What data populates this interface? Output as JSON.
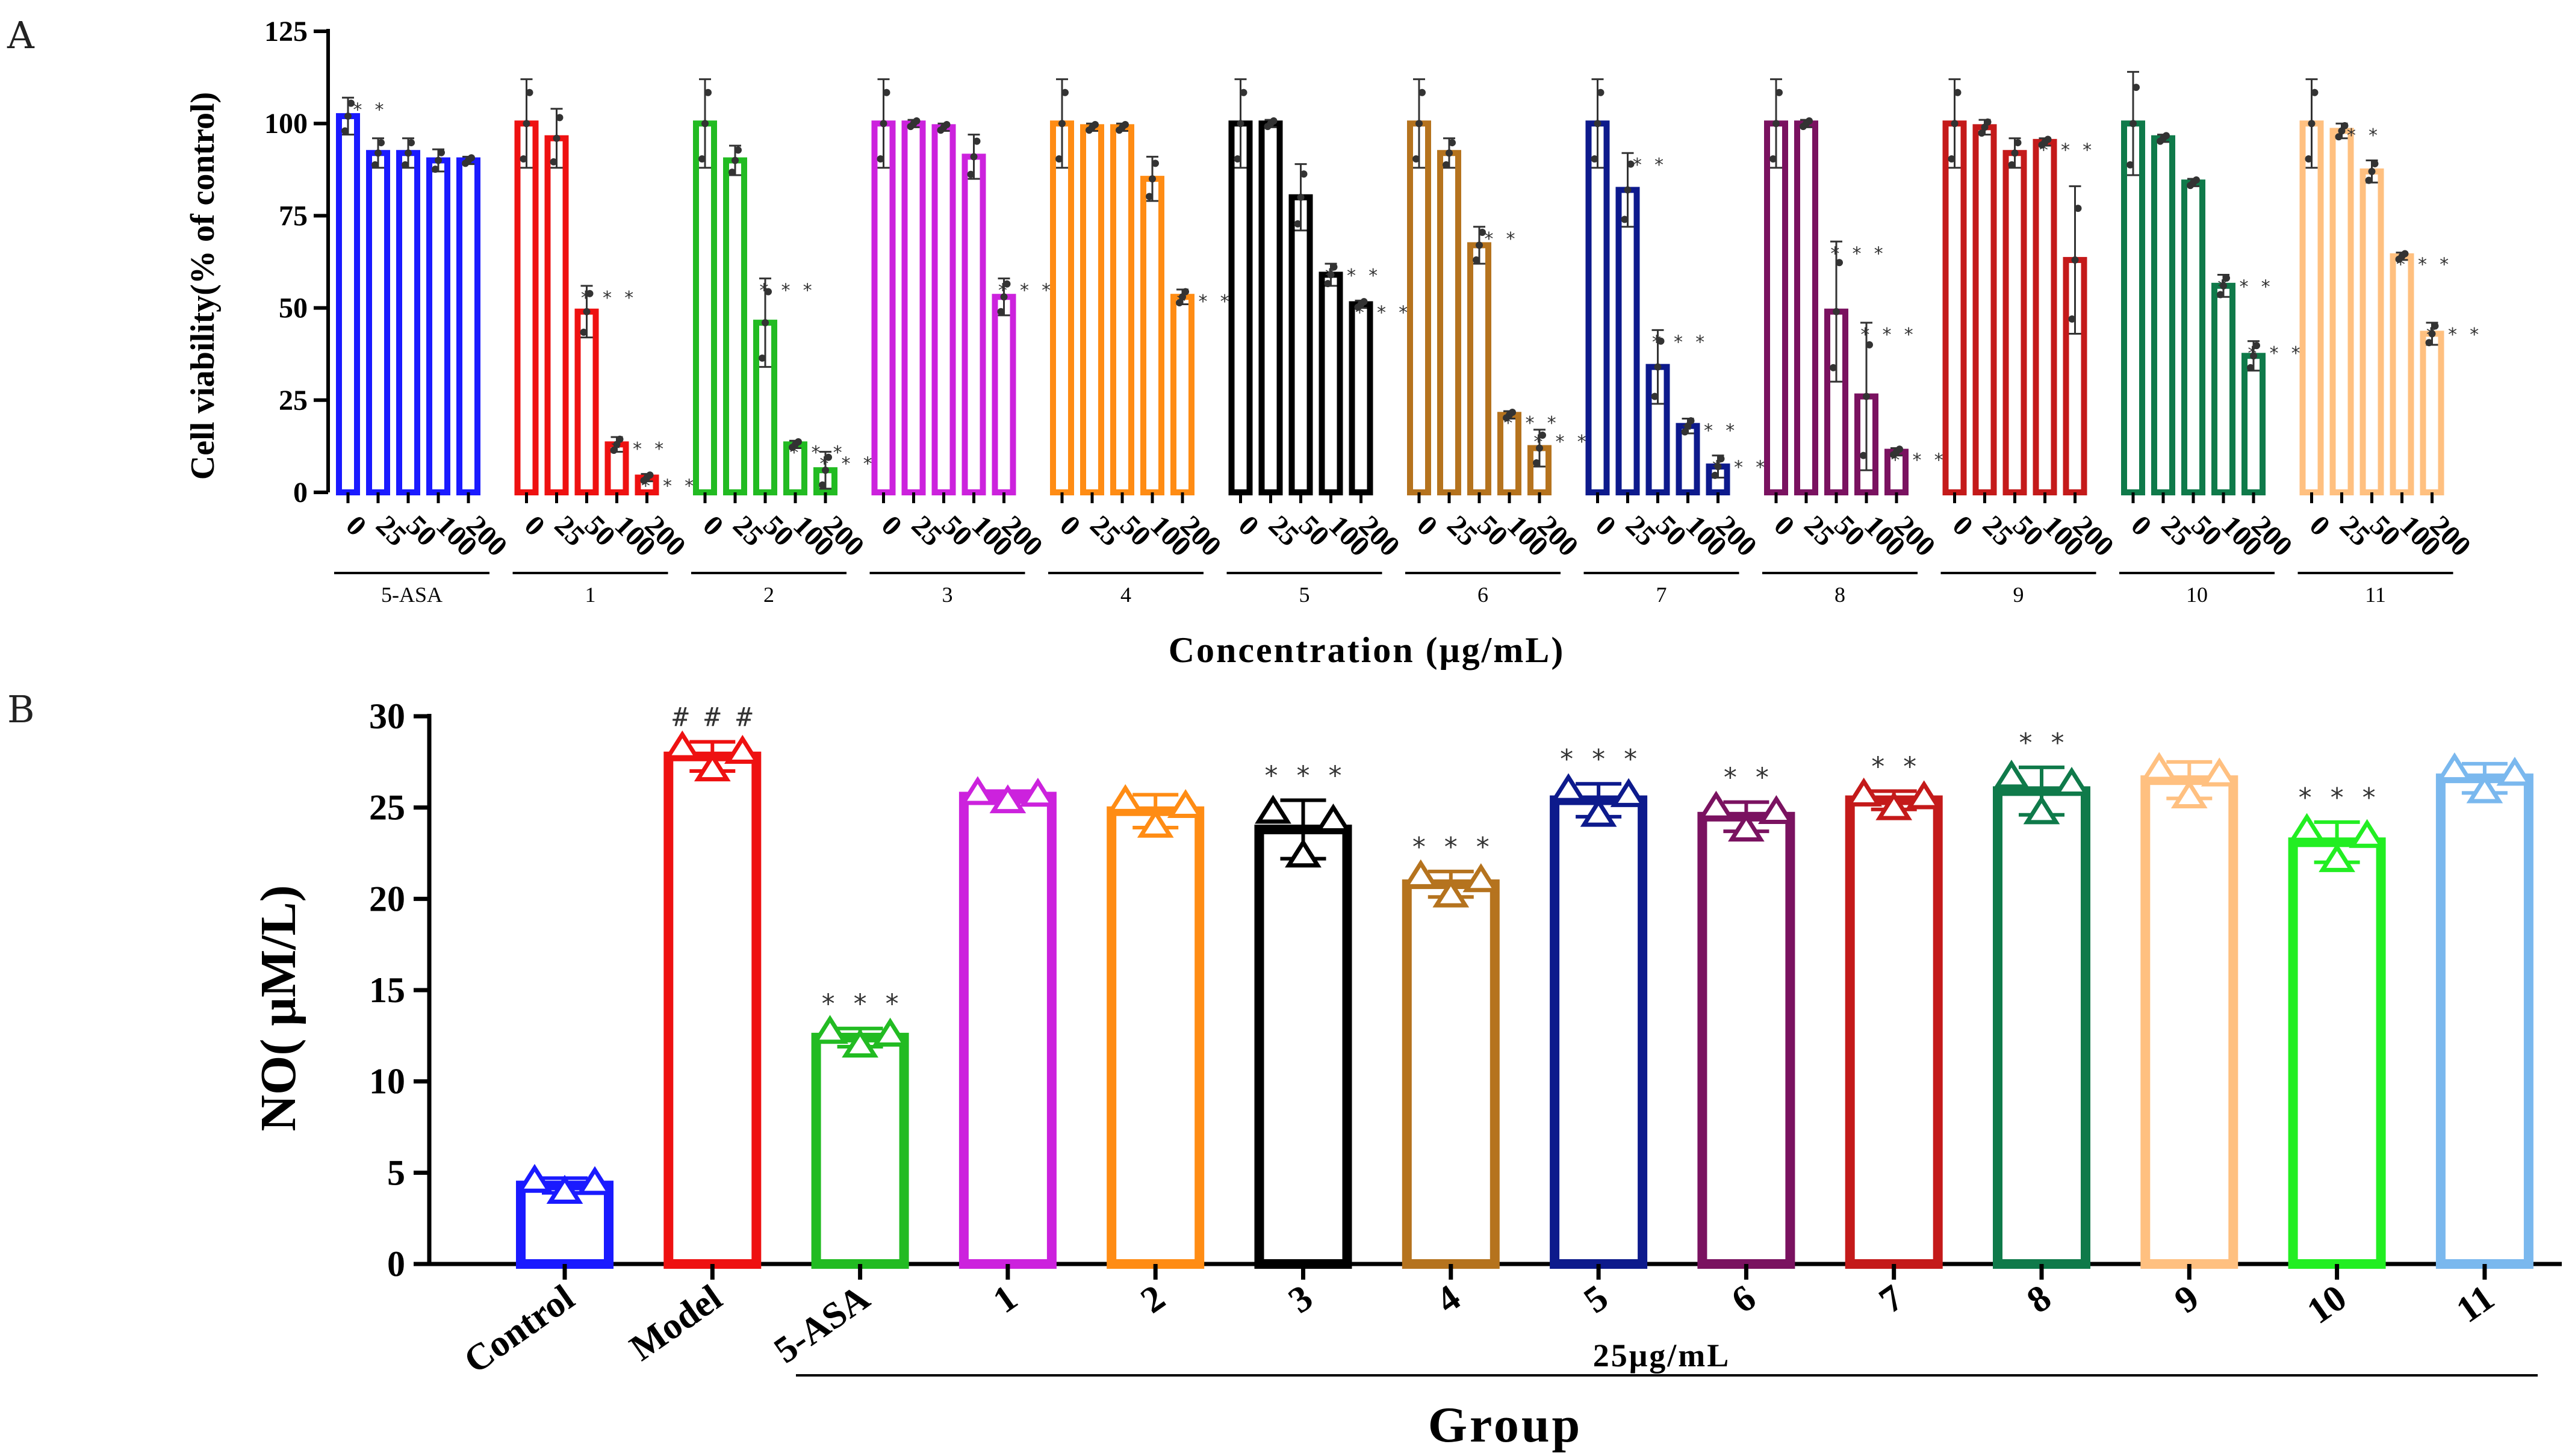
{
  "chart_data": [
    {
      "panel": "A",
      "type": "bar",
      "ylabel": "Cell viability(% of control)",
      "xlabel": "Concentration (μg/mL)",
      "ylim": [
        0,
        125
      ],
      "yticks": [
        "0",
        "25",
        "50",
        "75",
        "100",
        "125"
      ],
      "concentration_labels": [
        "0",
        "25",
        "50",
        "100",
        "200"
      ],
      "groups": [
        {
          "name": "5-ASA",
          "color": "#1a1aff",
          "values": [
            102,
            92,
            92,
            90,
            90
          ],
          "errors": [
            5,
            4,
            4,
            3,
            1
          ],
          "sig": [
            "**",
            "",
            "",
            "",
            ""
          ]
        },
        {
          "name": "1",
          "color": "#ee1111",
          "values": [
            100,
            96,
            49,
            13,
            4
          ],
          "errors": [
            12,
            8,
            7,
            2,
            1
          ],
          "sig": [
            "",
            "",
            "***",
            "***",
            "***"
          ]
        },
        {
          "name": "2",
          "color": "#22bb22",
          "values": [
            100,
            90,
            46,
            13,
            6
          ],
          "errors": [
            12,
            4,
            12,
            1,
            5
          ],
          "sig": [
            "",
            "",
            "***",
            "***",
            "***"
          ]
        },
        {
          "name": "3",
          "color": "#cc22dd",
          "values": [
            100,
            100,
            99,
            91,
            53
          ],
          "errors": [
            12,
            1,
            1,
            6,
            5
          ],
          "sig": [
            "",
            "",
            "",
            "",
            "***"
          ]
        },
        {
          "name": "4",
          "color": "#ff8c14",
          "values": [
            100,
            99,
            99,
            85,
            53
          ],
          "errors": [
            12,
            1,
            1,
            6,
            2
          ],
          "sig": [
            "",
            "",
            "",
            "",
            "***"
          ]
        },
        {
          "name": "5",
          "color": "#000000",
          "values": [
            100,
            100,
            80,
            59,
            51
          ],
          "errors": [
            12,
            1,
            9,
            3,
            1
          ],
          "sig": [
            "",
            "",
            "",
            "***",
            "***"
          ]
        },
        {
          "name": "6",
          "color": "#b5731e",
          "values": [
            100,
            92,
            67,
            21,
            12
          ],
          "errors": [
            12,
            4,
            5,
            1,
            5
          ],
          "sig": [
            "",
            "",
            "**",
            "***",
            "***"
          ]
        },
        {
          "name": "7",
          "color": "#0d1a8c",
          "values": [
            100,
            82,
            34,
            18,
            7
          ],
          "errors": [
            12,
            10,
            10,
            2,
            3
          ],
          "sig": [
            "",
            "**",
            "***",
            "***",
            "***"
          ]
        },
        {
          "name": "8",
          "color": "#7a1260",
          "values": [
            100,
            100,
            49,
            26,
            11
          ],
          "errors": [
            12,
            1,
            19,
            20,
            1
          ],
          "sig": [
            "",
            "",
            "***",
            "***",
            "***"
          ]
        },
        {
          "name": "9",
          "color": "#c41a1a",
          "values": [
            100,
            99,
            92,
            95,
            63
          ],
          "errors": [
            12,
            2,
            4,
            1,
            20
          ],
          "sig": [
            "",
            "",
            "",
            "***",
            ""
          ]
        },
        {
          "name": "10",
          "color": "#0f7a4a",
          "values": [
            100,
            96,
            84,
            56,
            37
          ],
          "errors": [
            14,
            1,
            1,
            3,
            4
          ],
          "sig": [
            "",
            "",
            "",
            "***",
            "***"
          ]
        },
        {
          "name": "11",
          "color": "#ffc080",
          "values": [
            100,
            98,
            87,
            64,
            43
          ],
          "errors": [
            12,
            2,
            3,
            1,
            3
          ],
          "sig": [
            "",
            "**",
            "",
            "***",
            "***"
          ]
        }
      ]
    },
    {
      "panel": "B",
      "type": "bar",
      "ylabel": "NO( μM/L)",
      "xlabel": "Group",
      "concentration_note": "25μg/mL",
      "ylim": [
        0,
        30
      ],
      "yticks": [
        "0",
        "5",
        "10",
        "15",
        "20",
        "25",
        "30"
      ],
      "categories": [
        "Control",
        "Model",
        "5-ASA",
        "1",
        "2",
        "3",
        "4",
        "5",
        "6",
        "7",
        "8",
        "9",
        "10",
        "11"
      ],
      "values": [
        4.3,
        27.8,
        12.4,
        25.6,
        24.8,
        23.8,
        20.8,
        25.4,
        24.5,
        25.4,
        25.9,
        26.5,
        23.1,
        26.6
      ],
      "errors": [
        0.4,
        0.8,
        0.5,
        0.3,
        0.9,
        1.6,
        0.7,
        0.9,
        0.8,
        0.5,
        1.3,
        1.0,
        1.1,
        0.8
      ],
      "colors": [
        "#1a1aff",
        "#ee1111",
        "#22bb22",
        "#cc22dd",
        "#ff8c14",
        "#000000",
        "#b5731e",
        "#0d1a8c",
        "#7a1260",
        "#c41a1a",
        "#0f7a4a",
        "#ffc080",
        "#22ee22",
        "#7ab8ee"
      ],
      "sig": [
        "",
        "###",
        "***",
        "",
        "",
        "***",
        "***",
        "***",
        "**",
        "**",
        "**",
        "",
        "***",
        ""
      ]
    }
  ],
  "panel_titles": {
    "a": "A",
    "b": "B"
  }
}
